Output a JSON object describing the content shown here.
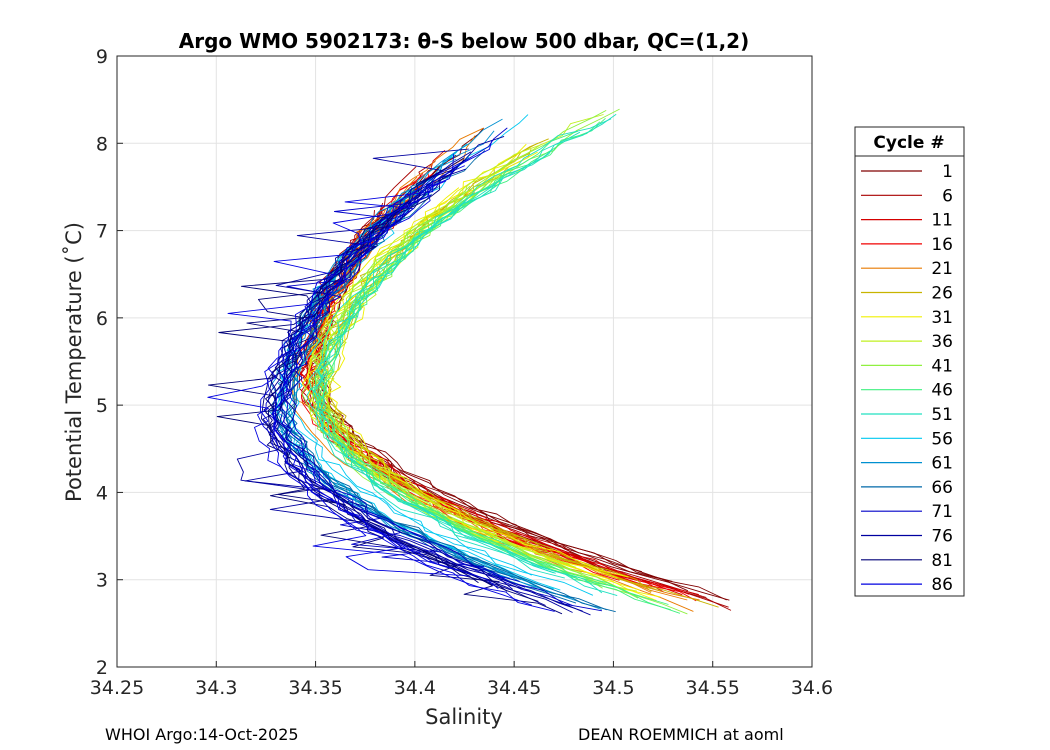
{
  "chart_data": {
    "type": "line",
    "title": "Argo WMO 5902173: θ-S below 500 dbar,  QC=(1,2)",
    "xlabel": "Salinity",
    "ylabel": "Potential Temperature (˚C)",
    "xlim": [
      34.25,
      34.6
    ],
    "ylim": [
      2,
      9
    ],
    "xticks": [
      "34.25",
      "34.3",
      "34.35",
      "34.4",
      "34.45",
      "34.5",
      "34.55",
      "34.6"
    ],
    "yticks": [
      "2",
      "3",
      "4",
      "5",
      "6",
      "7",
      "8",
      "9"
    ],
    "grid": true,
    "legend_title": "Cycle #",
    "legend_position": "right-outside",
    "series": [
      {
        "name": "1",
        "color": "#800000"
      },
      {
        "name": "6",
        "color": "#a80000"
      },
      {
        "name": "11",
        "color": "#d40000"
      },
      {
        "name": "16",
        "color": "#f00000"
      },
      {
        "name": "21",
        "color": "#e87a00"
      },
      {
        "name": "26",
        "color": "#c8b400"
      },
      {
        "name": "31",
        "color": "#f0f000"
      },
      {
        "name": "36",
        "color": "#c0f020"
      },
      {
        "name": "41",
        "color": "#90f040"
      },
      {
        "name": "46",
        "color": "#40f080"
      },
      {
        "name": "51",
        "color": "#20e0c0"
      },
      {
        "name": "56",
        "color": "#00c8f0"
      },
      {
        "name": "61",
        "color": "#0090d0"
      },
      {
        "name": "66",
        "color": "#0068a8"
      },
      {
        "name": "71",
        "color": "#0000c8"
      },
      {
        "name": "76",
        "color": "#0000a0"
      },
      {
        "name": "81",
        "color": "#000078"
      },
      {
        "name": "86",
        "color": "#0000e0"
      }
    ],
    "profile_shape": {
      "temperature": [
        8.2,
        7.8,
        7.4,
        7.0,
        6.6,
        6.2,
        5.8,
        5.4,
        5.0,
        4.6,
        4.2,
        3.8,
        3.5,
        3.2,
        3.0,
        2.8
      ],
      "typical_salinity": [
        34.51,
        34.46,
        34.42,
        34.39,
        34.37,
        34.355,
        34.35,
        34.35,
        34.355,
        34.365,
        34.38,
        34.41,
        34.44,
        34.47,
        34.5,
        34.52
      ]
    }
  },
  "footer": {
    "left": "WHOI Argo:14-Oct-2025",
    "right": "DEAN ROEMMICH at aoml"
  }
}
